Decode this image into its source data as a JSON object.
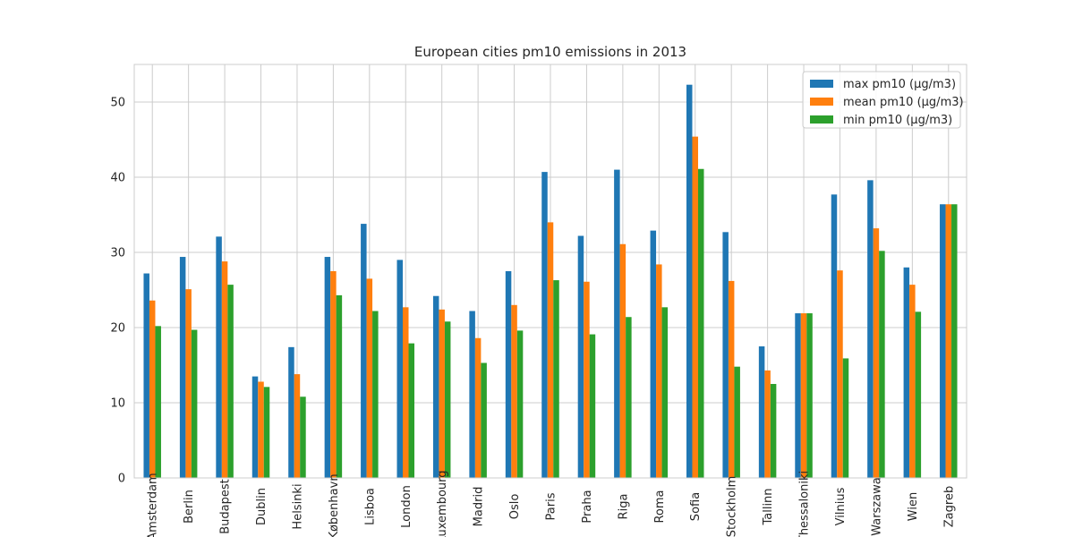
{
  "chart_data": {
    "type": "bar",
    "title": "European cities pm10 emissions in 2013",
    "xlabel": "",
    "ylabel": "",
    "ylim": [
      0,
      55
    ],
    "yticks": [
      0,
      10,
      20,
      30,
      40,
      50
    ],
    "grid": true,
    "legend_position": "top-right",
    "categories": [
      "Amsterdam",
      "Berlin",
      "Budapest",
      "Dublin",
      "Helsinki",
      "København",
      "Lisboa",
      "London",
      "Luxembourg",
      "Madrid",
      "Oslo",
      "Paris",
      "Praha",
      "Riga",
      "Roma",
      "Sofia",
      "Stockholm",
      "Tallinn",
      "Thessaloniki",
      "Vilnius",
      "Warszawa",
      "Wien",
      "Zagreb"
    ],
    "series": [
      {
        "name": "max pm10 (μg/m3)",
        "color": "#1f77b4",
        "values": [
          27.2,
          29.4,
          32.1,
          13.5,
          17.4,
          29.4,
          33.8,
          29.0,
          24.2,
          22.2,
          27.5,
          40.7,
          32.2,
          41.0,
          32.9,
          52.3,
          32.7,
          17.5,
          21.9,
          37.7,
          39.6,
          28.0,
          36.4
        ]
      },
      {
        "name": "mean pm10 (μg/m3)",
        "color": "#ff7f0e",
        "values": [
          23.6,
          25.1,
          28.8,
          12.8,
          13.8,
          27.5,
          26.5,
          22.7,
          22.4,
          18.6,
          23.0,
          34.0,
          26.1,
          31.1,
          28.4,
          45.4,
          26.2,
          14.3,
          21.9,
          27.6,
          33.2,
          25.7,
          36.4
        ]
      },
      {
        "name": "min pm10 (μg/m3)",
        "color": "#2ca02c",
        "values": [
          20.2,
          19.7,
          25.7,
          12.1,
          10.8,
          24.3,
          22.2,
          17.9,
          20.8,
          15.3,
          19.6,
          26.3,
          19.1,
          21.4,
          22.7,
          41.1,
          14.8,
          12.5,
          21.9,
          15.9,
          30.2,
          22.1,
          36.4
        ]
      }
    ]
  }
}
